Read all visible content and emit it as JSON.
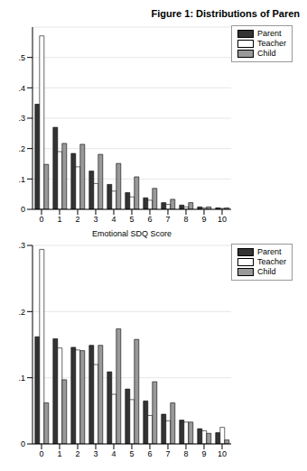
{
  "chart_data": [
    {
      "type": "bar",
      "title": "Figure 1: Distributions of Paren",
      "x_label": "Emotional SDQ Score",
      "categories": [
        0,
        1,
        2,
        3,
        4,
        5,
        6,
        7,
        8,
        9,
        10
      ],
      "series": [
        {
          "name": "Parent",
          "color": "#333333",
          "values": [
            0.346,
            0.27,
            0.184,
            0.126,
            0.082,
            0.055,
            0.038,
            0.022,
            0.014,
            0.008,
            0.005
          ]
        },
        {
          "name": "Teacher",
          "color": "#ffffff",
          "values": [
            0.571,
            0.19,
            0.14,
            0.085,
            0.06,
            0.041,
            0.03,
            0.016,
            0.008,
            0.005,
            0.003
          ]
        },
        {
          "name": "Child",
          "color": "#999999",
          "values": [
            0.148,
            0.217,
            0.214,
            0.181,
            0.151,
            0.107,
            0.069,
            0.033,
            0.022,
            0.008,
            0.005
          ]
        }
      ],
      "ylim": [
        0,
        0.6
      ],
      "yticks": [
        0,
        {
          "value": 0.1,
          "label": ".1"
        },
        {
          "value": 0.2,
          "label": ".2"
        },
        {
          "value": 0.3,
          "label": ".3"
        },
        {
          "value": 0.4,
          "label": ".4"
        },
        {
          "value": 0.5,
          "label": ".5"
        }
      ],
      "grid": true,
      "legend": "top right"
    },
    {
      "type": "bar",
      "categories": [
        0,
        1,
        2,
        3,
        4,
        5,
        6,
        7,
        8,
        9,
        10
      ],
      "series": [
        {
          "name": "Parent",
          "color": "#333333",
          "values": [
            0.162,
            0.159,
            0.146,
            0.149,
            0.109,
            0.083,
            0.065,
            0.045,
            0.036,
            0.023,
            0.017
          ]
        },
        {
          "name": "Teacher",
          "color": "#ffffff",
          "values": [
            0.294,
            0.145,
            0.142,
            0.12,
            0.075,
            0.067,
            0.043,
            0.035,
            0.033,
            0.02,
            0.025
          ]
        },
        {
          "name": "Child",
          "color": "#999999",
          "values": [
            0.062,
            0.097,
            0.141,
            0.149,
            0.174,
            0.158,
            0.094,
            0.062,
            0.033,
            0.016,
            0.006
          ]
        }
      ],
      "ylim": [
        0,
        0.3
      ],
      "yticks": [
        0,
        {
          "value": 0.1,
          "label": ".1"
        },
        {
          "value": 0.2,
          "label": ".2"
        },
        {
          "value": 0.3,
          "label": ".3"
        }
      ],
      "grid": true,
      "legend": "top right"
    }
  ]
}
